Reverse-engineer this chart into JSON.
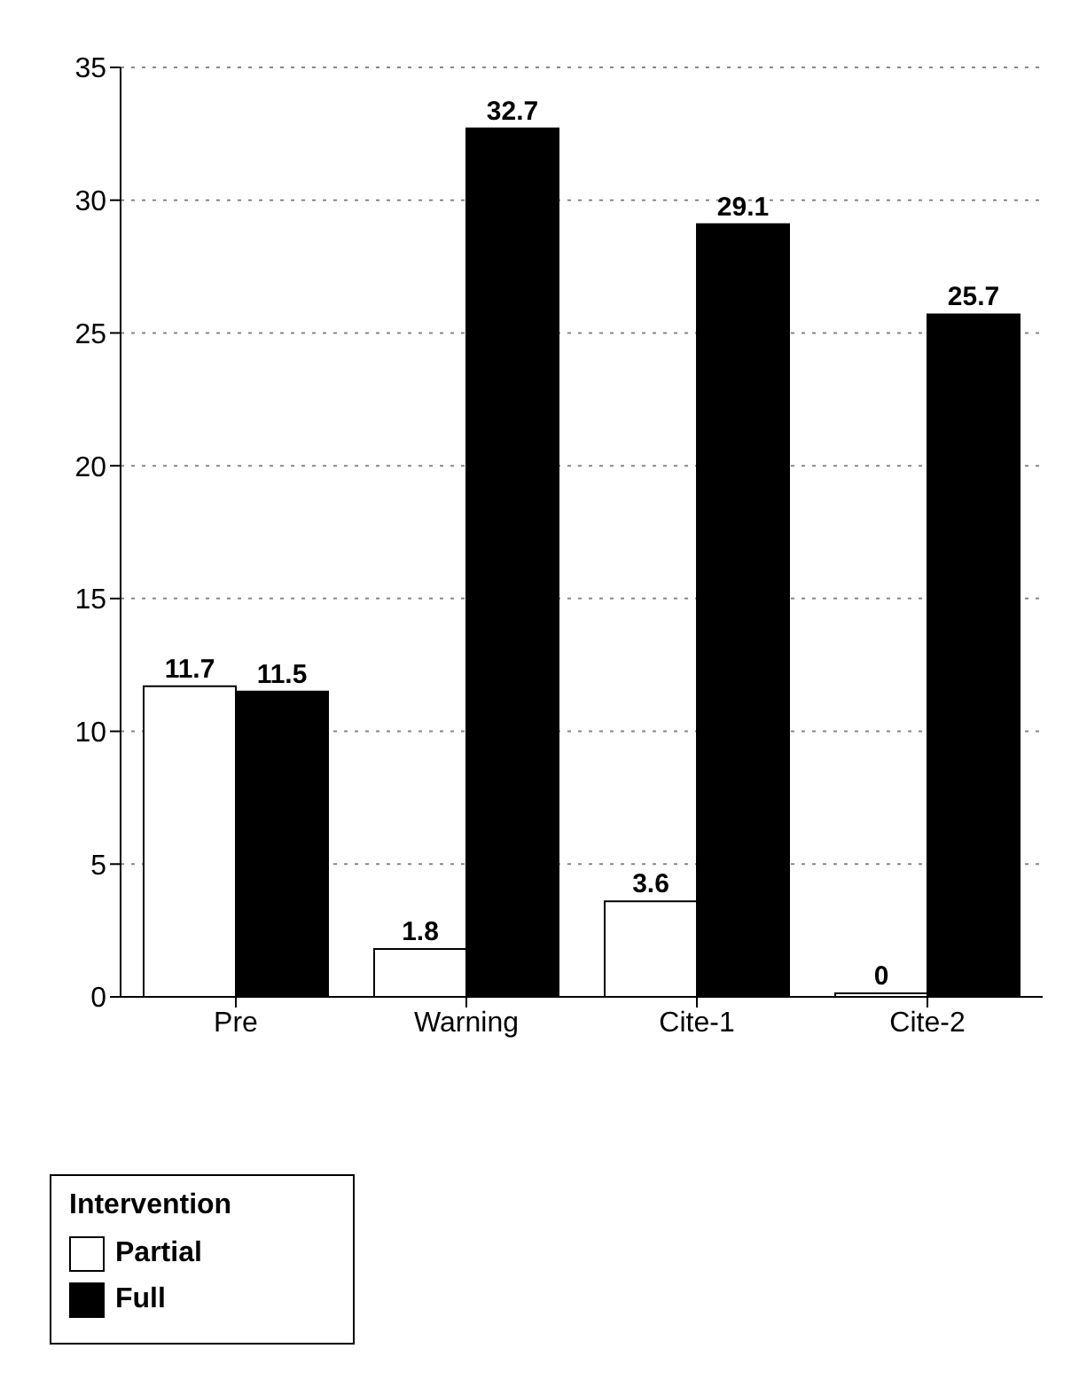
{
  "chart_data": {
    "type": "bar",
    "categories": [
      "Pre",
      "Warning",
      "Cite-1",
      "Cite-2"
    ],
    "series": [
      {
        "name": "Partial",
        "color": "#ffffff",
        "values": [
          11.7,
          1.8,
          3.6,
          0
        ]
      },
      {
        "name": "Full",
        "color": "#000000",
        "values": [
          11.5,
          32.7,
          29.1,
          25.7
        ]
      }
    ],
    "ylim": [
      0,
      35
    ],
    "yticks": [
      0,
      5,
      10,
      15,
      20,
      25,
      30,
      35
    ],
    "grid": "y",
    "data_labels": true,
    "legend": "bottom left",
    "legend_title": "Intervention"
  }
}
